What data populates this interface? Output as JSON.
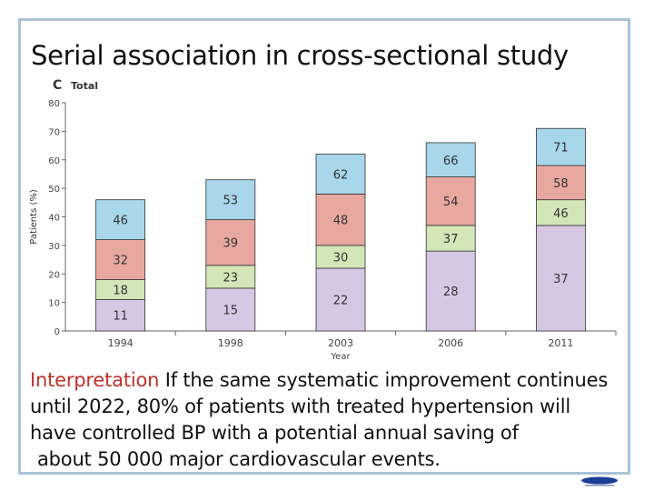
{
  "slide": {
    "title": "Serial association in cross-sectional study",
    "interpretation_label": "Interpretation",
    "interpretation_lines": [
      " If the same systematic improvement continues",
      "until 2022, 80% of patients with treated hypertension will",
      "have controlled BP with a potential annual saving of",
      "about 50 000 major cardiovascular events."
    ]
  },
  "chart_data": {
    "type": "bar",
    "stacked": true,
    "panel_letter": "C",
    "title": "Total",
    "xlabel": "Year",
    "ylabel": "Patients (%)",
    "ylim": [
      0,
      80
    ],
    "yticks": [
      0,
      10,
      20,
      30,
      40,
      50,
      60,
      70,
      80
    ],
    "categories": [
      "1994",
      "1998",
      "2003",
      "2006",
      "2011"
    ],
    "segments": [
      {
        "labels": [
          "11",
          "18",
          "32",
          "46"
        ],
        "tops": [
          11,
          18,
          32,
          46
        ]
      },
      {
        "labels": [
          "15",
          "23",
          "39",
          "53"
        ],
        "tops": [
          15,
          23,
          39,
          53
        ]
      },
      {
        "labels": [
          "22",
          "30",
          "48",
          "62"
        ],
        "tops": [
          22,
          30,
          48,
          62
        ]
      },
      {
        "labels": [
          "28",
          "37",
          "54",
          "66"
        ],
        "tops": [
          28,
          37,
          54,
          66
        ]
      },
      {
        "labels": [
          "37",
          "46",
          "58",
          "71"
        ],
        "tops": [
          37,
          46,
          58,
          71
        ]
      }
    ],
    "colors": [
      "#d6c8e4",
      "#d3e6b8",
      "#e8a8a0",
      "#a8d6ea"
    ],
    "legend": "none"
  }
}
